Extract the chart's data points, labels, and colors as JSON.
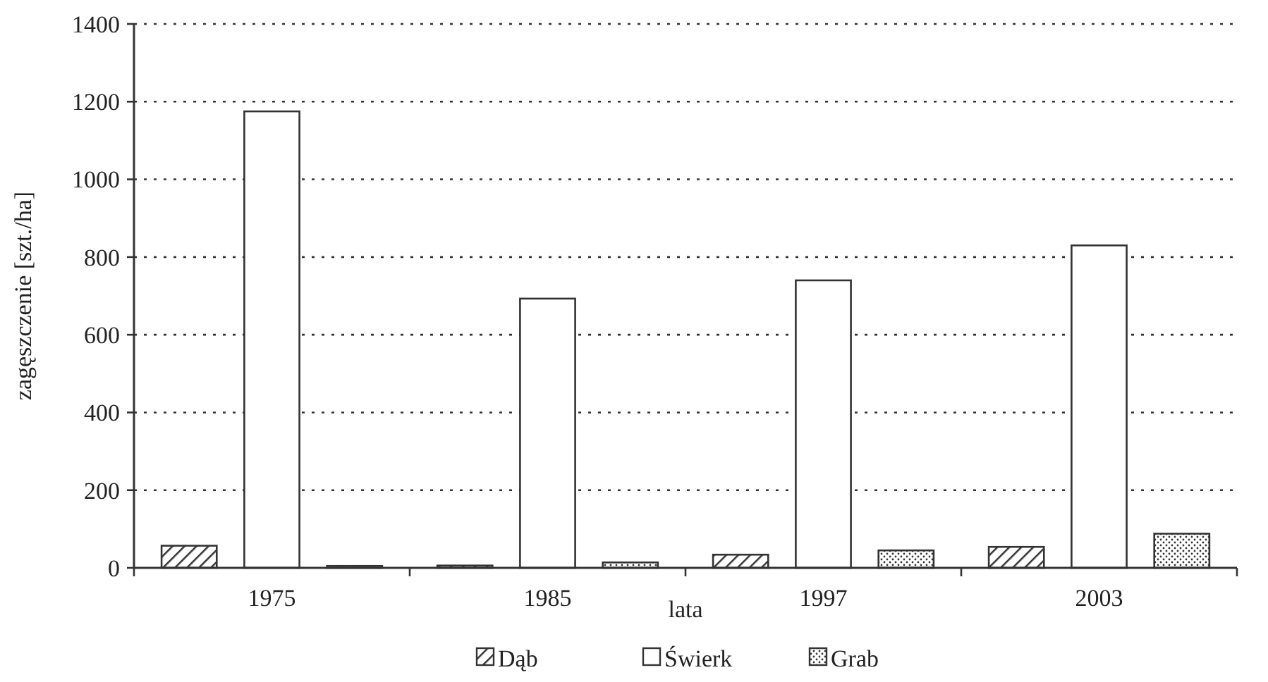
{
  "chart_data": {
    "type": "bar",
    "xlabel": "lata",
    "ylabel": "zagęszczenie [szt./ha]",
    "categories": [
      "1975",
      "1985",
      "1997",
      "2003"
    ],
    "series": [
      {
        "name": "Dąb",
        "color": "#333333",
        "values": [
          57,
          6,
          34,
          54
        ]
      },
      {
        "name": "Świerk",
        "color": "#ffffff",
        "values": [
          1175,
          693,
          740,
          830
        ]
      },
      {
        "name": "Grab",
        "color": "#333333",
        "values": [
          5,
          14,
          45,
          88
        ]
      }
    ],
    "ylim": [
      0,
      1400
    ],
    "yticks": [
      0,
      200,
      400,
      600,
      800,
      1000,
      1200,
      1400
    ],
    "grid": "y",
    "legend": "bottom"
  }
}
